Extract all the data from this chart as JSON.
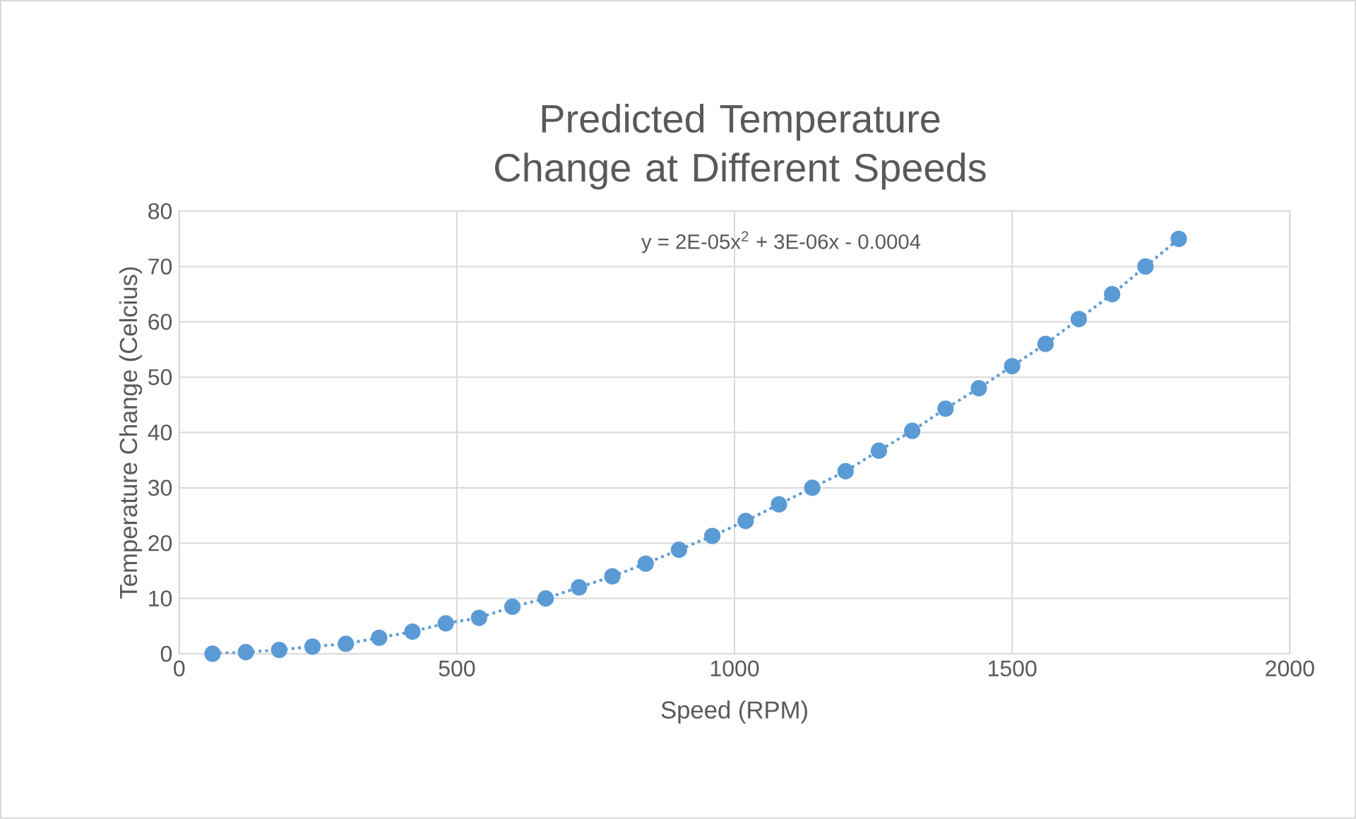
{
  "chart_data": {
    "type": "line",
    "title": "Predicted Temperature Change at Different Speeds",
    "xlabel": "Speed (RPM)",
    "ylabel": "Temperature Change (Celcius)",
    "annotations": [
      "y = 2E-05x$^{2}$ + 3E-06x - 0.0004"
    ],
    "xlim": [
      0,
      2000
    ],
    "xticks": [
      0,
      500,
      1000,
      1500,
      2000
    ],
    "ylim": [
      0,
      80
    ],
    "yticks": [
      0,
      10,
      20,
      30,
      40,
      50,
      60,
      70,
      80
    ],
    "grid": true,
    "marker": "circle",
    "line_style": "dotted",
    "series": [
      {
        "color": "#5b9bd5",
        "x": [
          60,
          120,
          180,
          240,
          300,
          360,
          420,
          480,
          540,
          600,
          660,
          720,
          780,
          840,
          900,
          960,
          1020,
          1080,
          1140,
          1200,
          1260,
          1320,
          1380,
          1440,
          1500,
          1560,
          1620,
          1680,
          1740,
          1800
        ],
        "values": [
          0,
          0.3,
          0.7,
          1.3,
          1.8,
          2.9,
          4,
          5.5,
          6.5,
          8.5,
          10,
          12,
          14,
          16.3,
          18.8,
          21.3,
          24,
          27,
          30,
          33,
          36.7,
          40.3,
          44.3,
          48,
          52,
          56,
          60.5,
          65,
          70,
          75
        ]
      }
    ]
  }
}
